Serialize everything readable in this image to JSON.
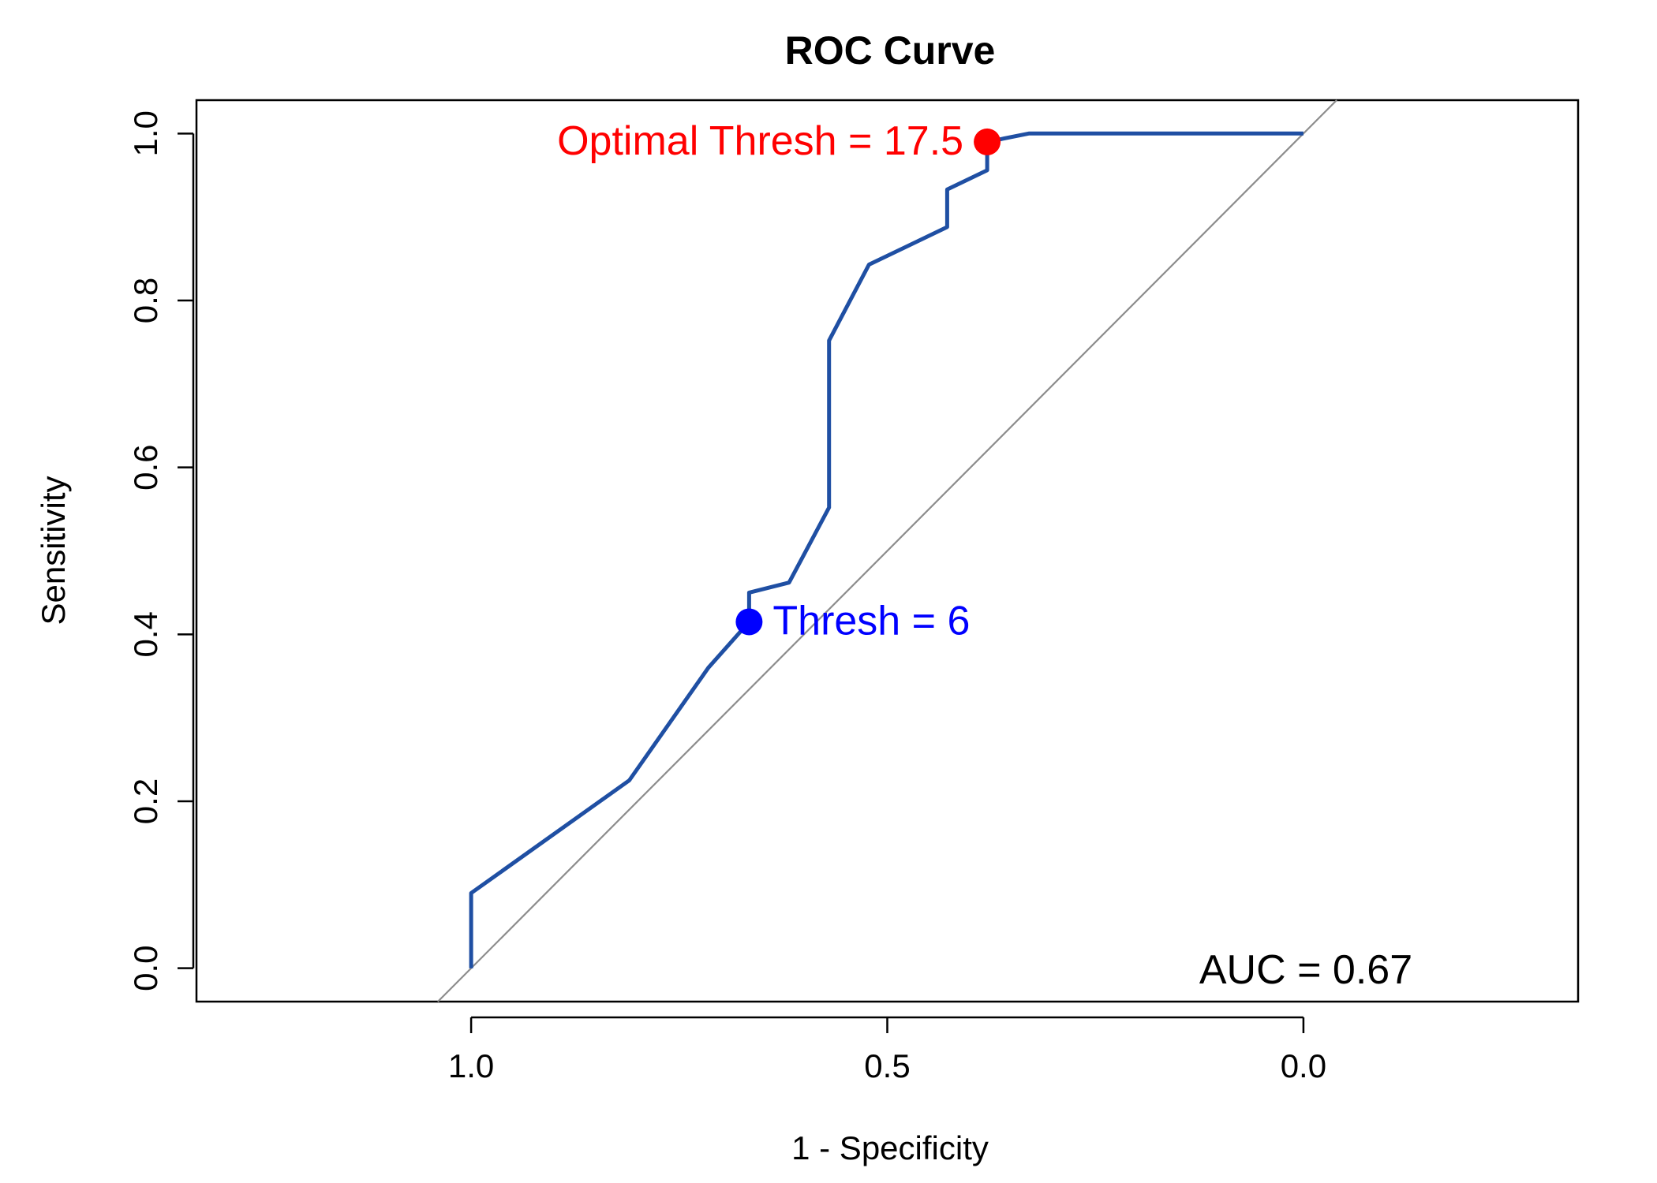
{
  "chart_data": {
    "type": "line",
    "title": "ROC Curve",
    "xlabel": "1 - Specificity",
    "ylabel": "Sensitivity",
    "x_reversed": true,
    "xlim": [
      1.33,
      -0.33
    ],
    "ylim": [
      -0.04,
      1.04
    ],
    "x_ticks": [
      1.0,
      0.5,
      0.0
    ],
    "x_tick_labels": [
      "1.0",
      "0.5",
      "0.0"
    ],
    "y_ticks": [
      0.0,
      0.2,
      0.4,
      0.6,
      0.8,
      1.0
    ],
    "y_tick_labels": [
      "0.0",
      "0.2",
      "0.4",
      "0.6",
      "0.8",
      "1.0"
    ],
    "grid": false,
    "series": [
      {
        "color": "#1f4fa3",
        "points": [
          [
            1.0,
            0.0
          ],
          [
            1.0,
            0.09
          ],
          [
            0.81,
            0.225
          ],
          [
            0.715,
            0.36
          ],
          [
            0.666,
            0.415
          ],
          [
            0.666,
            0.45
          ],
          [
            0.618,
            0.462
          ],
          [
            0.57,
            0.552
          ],
          [
            0.57,
            0.752
          ],
          [
            0.522,
            0.843
          ],
          [
            0.428,
            0.888
          ],
          [
            0.428,
            0.933
          ],
          [
            0.38,
            0.956
          ],
          [
            0.38,
            0.99
          ],
          [
            0.33,
            1.0
          ],
          [
            0.0,
            1.0
          ]
        ]
      }
    ],
    "reference_line": {
      "color": "#8c8c8c",
      "description": "diagonal y = 1 - x"
    },
    "annotations": [
      {
        "label": "Optimal Thresh = 17.5",
        "x": 0.38,
        "y": 0.99,
        "color": "#ff0000",
        "side": "left"
      },
      {
        "label": "Thresh = 6",
        "x": 0.666,
        "y": 0.415,
        "color": "#0000ff",
        "side": "right"
      }
    ],
    "auc_text": "AUC = 0.67"
  }
}
